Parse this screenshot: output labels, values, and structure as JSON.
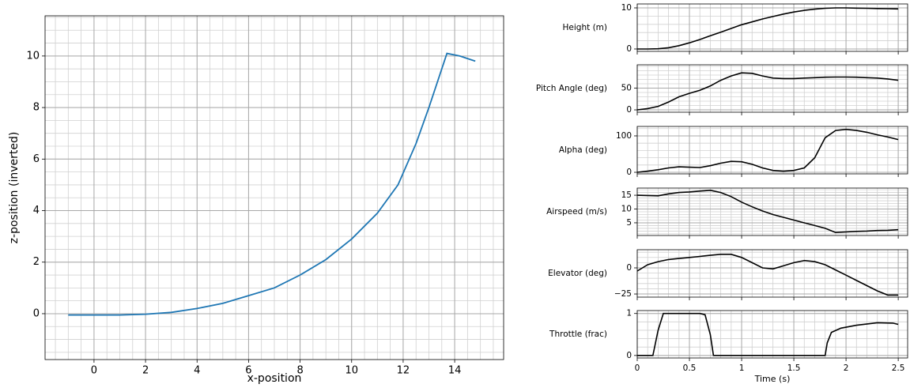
{
  "chart_data": [
    {
      "type": "line",
      "xlabel": "x-position",
      "ylabel": "z-position (inverted)",
      "x": [
        -1,
        0,
        1,
        2,
        3,
        4,
        5,
        6,
        7,
        8,
        9,
        10,
        11,
        11.8,
        12.5,
        13,
        13.4,
        13.7,
        14.2,
        14.8
      ],
      "series": [
        {
          "color": "#1f77b4",
          "values": [
            -0.05,
            -0.05,
            -0.05,
            -0.02,
            0.05,
            0.2,
            0.4,
            0.7,
            1.0,
            1.5,
            2.1,
            2.9,
            3.9,
            5.0,
            6.6,
            8.0,
            9.2,
            10.1,
            10.0,
            9.8
          ]
        }
      ],
      "xlim": [
        -1.9,
        15.9
      ],
      "xticks": [
        0,
        2,
        4,
        6,
        8,
        10,
        12,
        14
      ],
      "ylim": [
        -1.78,
        11.56
      ],
      "yticks": [
        0,
        2,
        4,
        6,
        8,
        10
      ],
      "grid": true,
      "minor_grid": 4
    },
    {
      "type": "line",
      "ylabel": "Height (m)",
      "x": [
        0,
        0.1,
        0.2,
        0.3,
        0.4,
        0.5,
        0.6,
        0.7,
        0.8,
        0.9,
        1.0,
        1.1,
        1.2,
        1.3,
        1.4,
        1.5,
        1.6,
        1.7,
        1.8,
        1.9,
        2.0,
        2.1,
        2.2,
        2.3,
        2.4,
        2.5
      ],
      "series": [
        {
          "color": "#000000",
          "values": [
            0,
            0,
            0.05,
            0.3,
            0.8,
            1.5,
            2.3,
            3.2,
            4.1,
            5.0,
            5.9,
            6.6,
            7.3,
            7.9,
            8.5,
            9.0,
            9.4,
            9.7,
            9.9,
            10.0,
            10.0,
            9.95,
            9.9,
            9.85,
            9.8,
            9.75
          ]
        }
      ],
      "ylim": [
        -0.58,
        10.96
      ],
      "yticks": [
        0,
        10
      ],
      "grid": true,
      "minor_grid": 5
    },
    {
      "type": "line",
      "ylabel": "Pitch Angle (deg)",
      "x": [
        0,
        0.1,
        0.2,
        0.3,
        0.4,
        0.5,
        0.6,
        0.7,
        0.8,
        0.9,
        1.0,
        1.1,
        1.2,
        1.3,
        1.4,
        1.5,
        1.6,
        1.7,
        1.8,
        1.9,
        2.0,
        2.1,
        2.2,
        2.3,
        2.4,
        2.5
      ],
      "series": [
        {
          "color": "#000000",
          "values": [
            0,
            3,
            8,
            18,
            30,
            38,
            45,
            55,
            68,
            78,
            85,
            84,
            78,
            73,
            72,
            72,
            73,
            74,
            75,
            75.5,
            75.5,
            75,
            74,
            73,
            71,
            68
          ]
        }
      ],
      "ylim": [
        -5.4,
        103.6
      ],
      "yticks": [
        0,
        50
      ],
      "grid": true,
      "minor_grid": 5
    },
    {
      "type": "line",
      "ylabel": "Alpha (deg)",
      "x": [
        0,
        0.1,
        0.2,
        0.3,
        0.4,
        0.5,
        0.6,
        0.7,
        0.8,
        0.9,
        1.0,
        1.1,
        1.2,
        1.3,
        1.4,
        1.5,
        1.6,
        1.7,
        1.8,
        1.9,
        2.0,
        2.1,
        2.2,
        2.3,
        2.4,
        2.5
      ],
      "series": [
        {
          "color": "#000000",
          "values": [
            0,
            3,
            7,
            12,
            15,
            14,
            13,
            18,
            25,
            30,
            29,
            22,
            12,
            5,
            3,
            5,
            12,
            40,
            95,
            115,
            118,
            115,
            110,
            103,
            97,
            90
          ]
        }
      ],
      "ylim": [
        -4.3,
        126
      ],
      "yticks": [
        0,
        100
      ],
      "grid": true,
      "minor_grid": 5
    },
    {
      "type": "line",
      "ylabel": "Airspeed (m/s)",
      "x": [
        0,
        0.1,
        0.2,
        0.3,
        0.4,
        0.5,
        0.6,
        0.7,
        0.8,
        0.9,
        1.0,
        1.1,
        1.2,
        1.3,
        1.4,
        1.5,
        1.6,
        1.7,
        1.8,
        1.9,
        2.0,
        2.1,
        2.2,
        2.3,
        2.4,
        2.5
      ],
      "series": [
        {
          "color": "#000000",
          "values": [
            15,
            14.9,
            14.8,
            15.5,
            16,
            16.2,
            16.5,
            16.8,
            16,
            14.5,
            12.5,
            10.8,
            9.3,
            8,
            7,
            6,
            5,
            4,
            3,
            1.5,
            1.7,
            1.9,
            2.0,
            2.2,
            2.3,
            2.5
          ]
        }
      ],
      "ylim": [
        0.4,
        17.6
      ],
      "yticks": [
        5,
        10,
        15
      ],
      "grid": true,
      "minor_grid": 5
    },
    {
      "type": "line",
      "ylabel": "Elevator (deg)",
      "x": [
        0,
        0.1,
        0.2,
        0.3,
        0.4,
        0.5,
        0.6,
        0.7,
        0.8,
        0.9,
        1.0,
        1.1,
        1.2,
        1.3,
        1.4,
        1.5,
        1.6,
        1.7,
        1.8,
        1.9,
        2.0,
        2.1,
        2.2,
        2.3,
        2.4,
        2.5
      ],
      "series": [
        {
          "color": "#000000",
          "values": [
            -3,
            3,
            6,
            8,
            9,
            10,
            11,
            12,
            13,
            13,
            10,
            5,
            0,
            -1,
            2,
            5,
            7,
            6,
            3,
            -2,
            -7,
            -12,
            -17,
            -22,
            -26,
            -26
          ]
        }
      ],
      "ylim": [
        -28,
        17.4
      ],
      "yticks": [
        {
          "value": -25,
          "label": "−25"
        },
        0
      ],
      "grid": true,
      "minor_grid": 5
    },
    {
      "type": "line",
      "ylabel": "Throttle (frac)",
      "xlabel": "Time (s)",
      "x": [
        0,
        0.15,
        0.2,
        0.25,
        0.6,
        0.65,
        0.7,
        0.73,
        1.8,
        1.82,
        1.86,
        1.95,
        2.1,
        2.3,
        2.45,
        2.5
      ],
      "series": [
        {
          "color": "#000000",
          "values": [
            0,
            0,
            0.6,
            1,
            1,
            0.97,
            0.5,
            0,
            0,
            0.3,
            0.55,
            0.65,
            0.72,
            0.78,
            0.77,
            0.74
          ]
        }
      ],
      "xlim": [
        0,
        2.59
      ],
      "xticks": [
        0,
        0.5,
        1,
        1.5,
        2,
        2.5
      ],
      "ylim": [
        -0.06,
        1.07
      ],
      "yticks": [
        0,
        1
      ],
      "grid": true,
      "minor_grid": 5
    }
  ]
}
